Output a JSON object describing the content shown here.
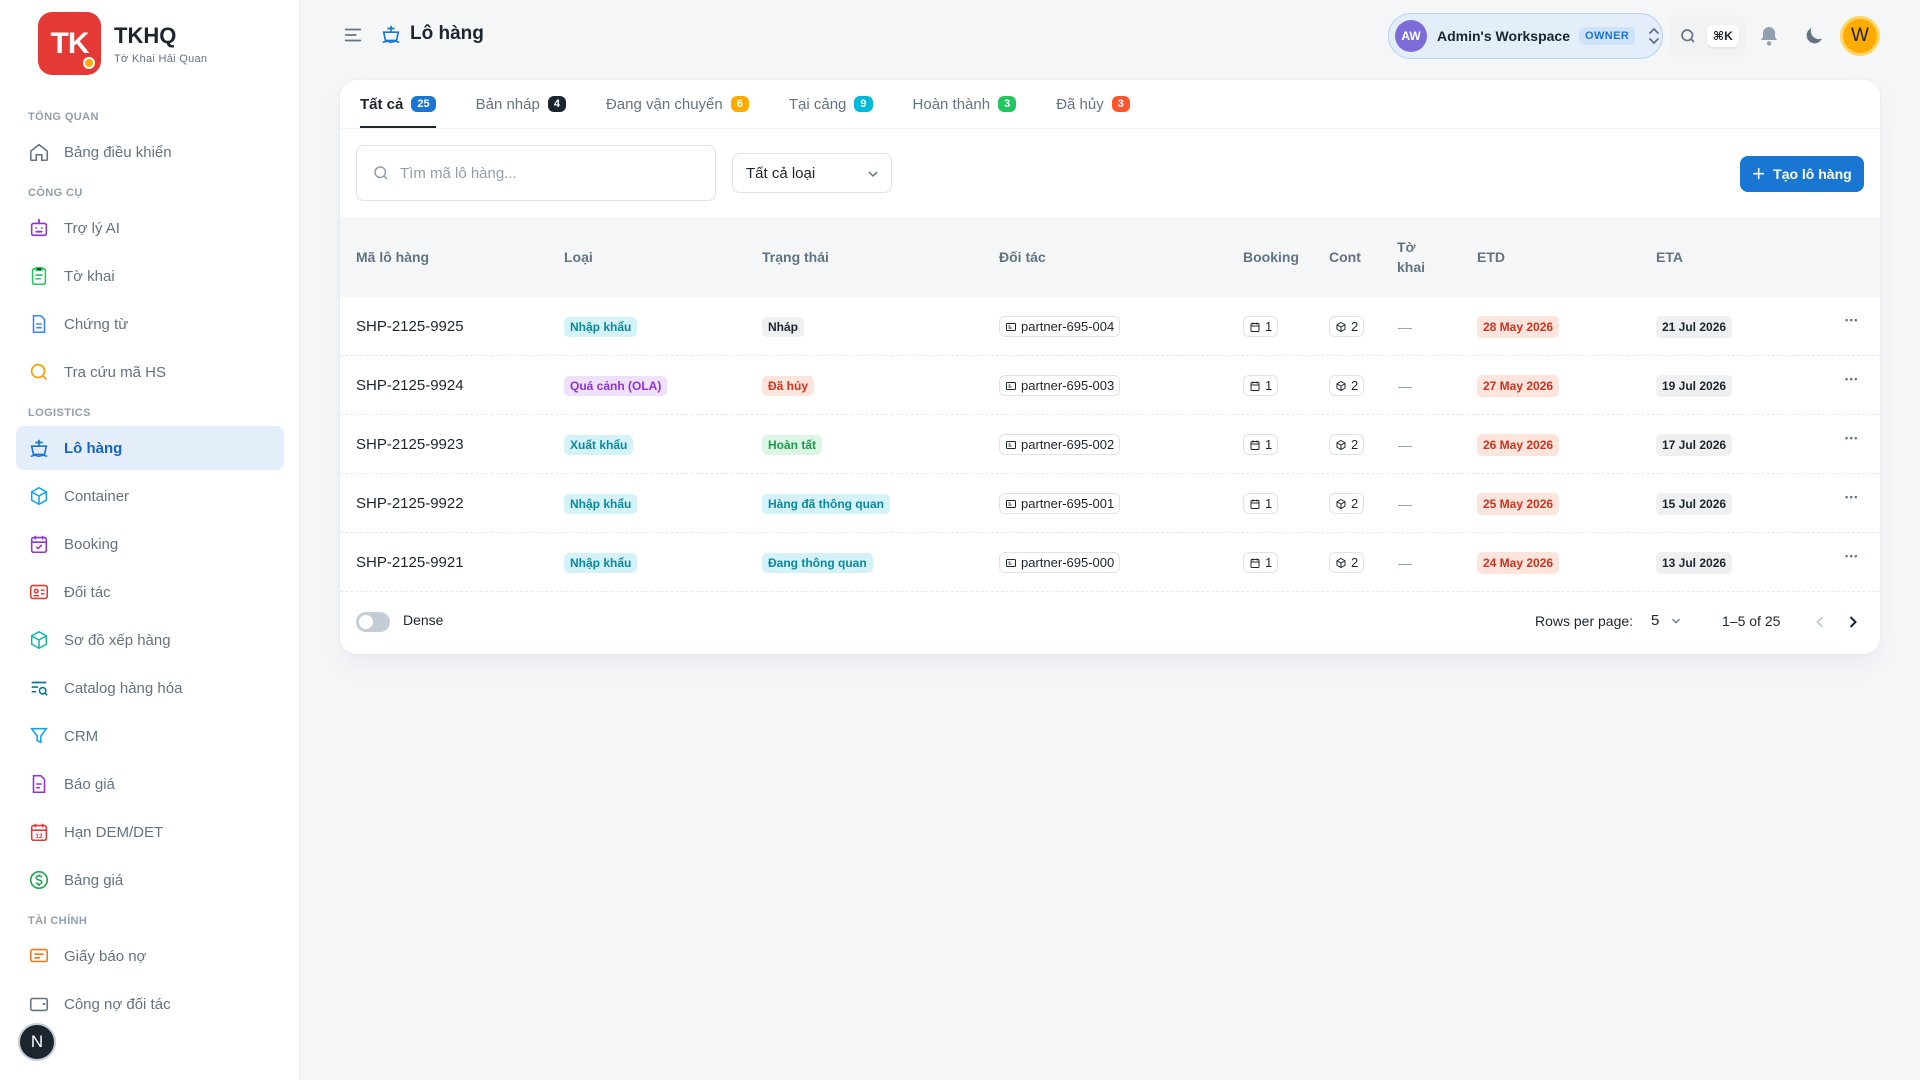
{
  "brand": {
    "logo_text": "TK",
    "title": "TKHQ",
    "subtitle": "Tờ Khai Hải Quan"
  },
  "sidebar": {
    "sections": [
      {
        "label": "TỔNG QUAN",
        "items": [
          {
            "label": "Bảng điều khiển",
            "icon": "home-icon"
          }
        ]
      },
      {
        "label": "CÔNG CỤ",
        "items": [
          {
            "label": "Trợ lý AI",
            "icon": "robot-icon"
          },
          {
            "label": "Tờ khai",
            "icon": "clipboard-icon"
          },
          {
            "label": "Chứng từ",
            "icon": "document-icon"
          },
          {
            "label": "Tra cứu mã HS",
            "icon": "search-icon"
          }
        ]
      },
      {
        "label": "LOGISTICS",
        "items": [
          {
            "label": "Lô hàng",
            "icon": "shipment-icon",
            "active": true
          },
          {
            "label": "Container",
            "icon": "box-icon"
          },
          {
            "label": "Booking",
            "icon": "calendar-check-icon"
          },
          {
            "label": "Đối tác",
            "icon": "id-card-icon"
          },
          {
            "label": "Sơ đồ xếp hàng",
            "icon": "cube-icon"
          },
          {
            "label": "Catalog hàng hóa",
            "icon": "list-search-icon"
          },
          {
            "label": "CRM",
            "icon": "funnel-icon"
          },
          {
            "label": "Báo giá",
            "icon": "invoice-icon"
          },
          {
            "label": "Hạn DEM/DET",
            "icon": "calendar-12-icon"
          },
          {
            "label": "Bảng giá",
            "icon": "dollar-icon"
          }
        ]
      },
      {
        "label": "TÀI CHÍNH",
        "items": [
          {
            "label": "Giấy báo nợ",
            "icon": "message-icon"
          },
          {
            "label": "Công nợ đối tác",
            "icon": "wallet-icon"
          }
        ]
      }
    ],
    "floating_avatar": "N"
  },
  "header": {
    "page_title": "Lô hàng",
    "workspace": {
      "initials": "AW",
      "name": "Admin's Workspace",
      "role": "OWNER"
    },
    "search_shortcut": "⌘K",
    "user_initial": "W"
  },
  "tabs": [
    {
      "label": "Tất cả",
      "count": "25",
      "color": "#1976d2",
      "active": true
    },
    {
      "label": "Bản nháp",
      "count": "4",
      "color": "#1c252e"
    },
    {
      "label": "Đang vận chuyển",
      "count": "6",
      "color": "#ffab00"
    },
    {
      "label": "Tại cảng",
      "count": "9",
      "color": "#00b8d9"
    },
    {
      "label": "Hoàn thành",
      "count": "3",
      "color": "#22c55e"
    },
    {
      "label": "Đã hủy",
      "count": "3",
      "color": "#ff5630"
    }
  ],
  "toolbar": {
    "search_placeholder": "Tìm mã lô hàng...",
    "filter_value": "Tất cả loại",
    "create_label": "Tạo lô hàng"
  },
  "table": {
    "columns": [
      "Mã lô hàng",
      "Loại",
      "Trạng thái",
      "Đối tác",
      "Booking",
      "Cont",
      "Tờ\nkhai",
      "ETD",
      "ETA"
    ],
    "rows": [
      {
        "code": "SHP-2125-9925",
        "type": "Nhập khẩu",
        "type_kind": "import",
        "status": "Nháp",
        "status_kind": "draft",
        "partner": "partner-695-004",
        "booking": "1",
        "cont": "2",
        "declaration": "—",
        "etd": "28 May 2026",
        "eta": "21 Jul 2026"
      },
      {
        "code": "SHP-2125-9924",
        "type": "Quá cảnh (OLA)",
        "type_kind": "transit",
        "status": "Đã hủy",
        "status_kind": "cancel",
        "partner": "partner-695-003",
        "booking": "1",
        "cont": "2",
        "declaration": "—",
        "etd": "27 May 2026",
        "eta": "19 Jul 2026"
      },
      {
        "code": "SHP-2125-9923",
        "type": "Xuất khẩu",
        "type_kind": "export",
        "status": "Hoàn tất",
        "status_kind": "done",
        "partner": "partner-695-002",
        "booking": "1",
        "cont": "2",
        "declaration": "—",
        "etd": "26 May 2026",
        "eta": "17 Jul 2026"
      },
      {
        "code": "SHP-2125-9922",
        "type": "Nhập khẩu",
        "type_kind": "import",
        "status": "Hàng đã thông quan",
        "status_kind": "cleared",
        "partner": "partner-695-001",
        "booking": "1",
        "cont": "2",
        "declaration": "—",
        "etd": "25 May 2026",
        "eta": "15 Jul 2026"
      },
      {
        "code": "SHP-2125-9921",
        "type": "Nhập khẩu",
        "type_kind": "import",
        "status": "Đang thông quan",
        "status_kind": "clearing",
        "partner": "partner-695-000",
        "booking": "1",
        "cont": "2",
        "declaration": "—",
        "etd": "24 May 2026",
        "eta": "13 Jul 2026"
      }
    ]
  },
  "footer": {
    "dense_label": "Dense",
    "rows_per_page_label": "Rows per page:",
    "rows_per_page_value": "5",
    "range": "1–5 of 25"
  }
}
